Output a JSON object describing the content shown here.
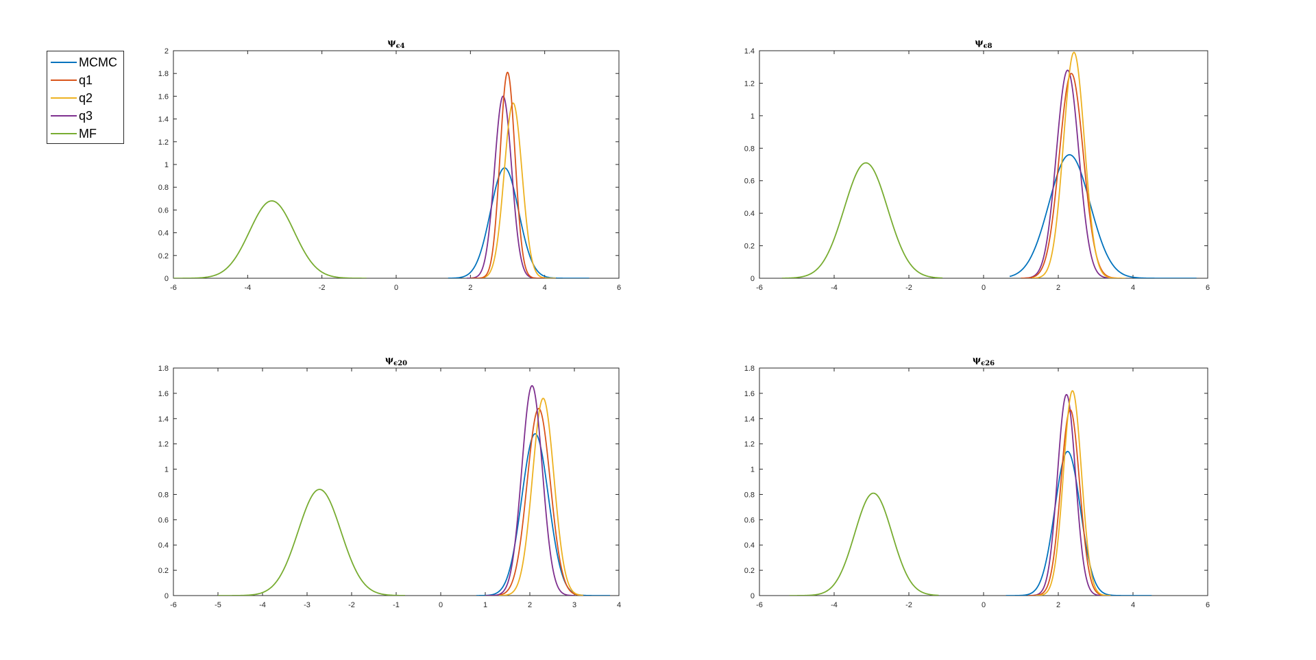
{
  "legend": [
    {
      "name": "MCMC",
      "color": "#0072BD"
    },
    {
      "name": "q1",
      "color": "#D95319"
    },
    {
      "name": "q2",
      "color": "#EDB120"
    },
    {
      "name": "q3",
      "color": "#7E2F8E"
    },
    {
      "name": "MF",
      "color": "#77AC30"
    }
  ],
  "chart_data": [
    {
      "type": "line",
      "title_main": "ψ",
      "title_sub": "ϵ4",
      "xlim": [
        -6,
        6
      ],
      "ylim": [
        0,
        2
      ],
      "xticks": [
        -6,
        -4,
        -2,
        0,
        2,
        4,
        6
      ],
      "yticks": [
        0,
        0.2,
        0.4,
        0.6,
        0.8,
        1,
        1.2,
        1.4,
        1.6,
        1.8,
        2
      ],
      "series": [
        {
          "name": "MF",
          "color": "#77AC30",
          "mode": "gauss",
          "center": -3.35,
          "sigma": 0.6,
          "peak": 0.68,
          "x0": -6.0,
          "x1": -0.8
        },
        {
          "name": "MCMC",
          "color": "#0072BD",
          "mode": "gauss",
          "center": 2.92,
          "sigma": 0.38,
          "peak": 0.97,
          "x0": 1.4,
          "x1": 5.2
        },
        {
          "name": "q3",
          "color": "#7E2F8E",
          "mode": "gauss",
          "center": 2.88,
          "sigma": 0.23,
          "peak": 1.6,
          "x0": 1.9,
          "x1": 4.0
        },
        {
          "name": "q2",
          "color": "#EDB120",
          "mode": "gauss",
          "center": 3.15,
          "sigma": 0.24,
          "peak": 1.54,
          "x0": 2.1,
          "x1": 4.3
        },
        {
          "name": "q1",
          "color": "#D95319",
          "mode": "gauss",
          "center": 3.0,
          "sigma": 0.2,
          "peak": 1.81,
          "x0": 2.0,
          "x1": 4.0
        }
      ]
    },
    {
      "type": "line",
      "title_main": "ψ",
      "title_sub": "ϵ8",
      "xlim": [
        -6,
        6
      ],
      "ylim": [
        0,
        1.4
      ],
      "xticks": [
        -6,
        -4,
        -2,
        0,
        2,
        4,
        6
      ],
      "yticks": [
        0,
        0.2,
        0.4,
        0.6,
        0.8,
        1,
        1.2,
        1.4
      ],
      "series": [
        {
          "name": "MF",
          "color": "#77AC30",
          "mode": "gauss",
          "center": -3.15,
          "sigma": 0.58,
          "peak": 0.71,
          "x0": -5.4,
          "x1": -1.1
        },
        {
          "name": "MCMC",
          "color": "#0072BD",
          "mode": "gauss",
          "center": 2.3,
          "sigma": 0.55,
          "peak": 0.76,
          "x0": 0.7,
          "x1": 5.7
        },
        {
          "name": "q3",
          "color": "#7E2F8E",
          "mode": "gauss",
          "center": 2.25,
          "sigma": 0.3,
          "peak": 1.28,
          "x0": 1.0,
          "x1": 3.6
        },
        {
          "name": "q1",
          "color": "#D95319",
          "mode": "gauss",
          "center": 2.35,
          "sigma": 0.32,
          "peak": 1.26,
          "x0": 1.0,
          "x1": 3.7
        },
        {
          "name": "q2",
          "color": "#EDB120",
          "mode": "gauss",
          "center": 2.42,
          "sigma": 0.28,
          "peak": 1.39,
          "x0": 1.3,
          "x1": 3.8
        }
      ]
    },
    {
      "type": "line",
      "title_main": "ψ",
      "title_sub": "ϵ20",
      "xlim": [
        -6,
        4
      ],
      "ylim": [
        0,
        1.8
      ],
      "xticks": [
        -6,
        -5,
        -4,
        -3,
        -2,
        -1,
        0,
        1,
        2,
        3,
        4
      ],
      "yticks": [
        0,
        0.2,
        0.4,
        0.6,
        0.8,
        1,
        1.2,
        1.4,
        1.6,
        1.8
      ],
      "series": [
        {
          "name": "MF",
          "color": "#77AC30",
          "mode": "gauss",
          "center": -2.72,
          "sigma": 0.48,
          "peak": 0.84,
          "x0": -5.0,
          "x1": -0.8
        },
        {
          "name": "MCMC",
          "color": "#0072BD",
          "mode": "gauss",
          "center": 2.12,
          "sigma": 0.3,
          "peak": 1.28,
          "x0": 0.8,
          "x1": 3.8
        },
        {
          "name": "q1",
          "color": "#D95319",
          "mode": "gauss",
          "center": 2.2,
          "sigma": 0.26,
          "peak": 1.48,
          "x0": 1.1,
          "x1": 3.1
        },
        {
          "name": "q2",
          "color": "#EDB120",
          "mode": "gauss",
          "center": 2.3,
          "sigma": 0.24,
          "peak": 1.56,
          "x0": 1.3,
          "x1": 3.2
        },
        {
          "name": "q3",
          "color": "#7E2F8E",
          "mode": "gauss",
          "center": 2.05,
          "sigma": 0.23,
          "peak": 1.66,
          "x0": 1.0,
          "x1": 3.0
        }
      ]
    },
    {
      "type": "line",
      "title_main": "ψ",
      "title_sub": "ϵ26",
      "xlim": [
        -6,
        6
      ],
      "ylim": [
        0,
        1.8
      ],
      "xticks": [
        -6,
        -4,
        -2,
        0,
        2,
        4,
        6
      ],
      "yticks": [
        0,
        0.2,
        0.4,
        0.6,
        0.8,
        1,
        1.2,
        1.4,
        1.6,
        1.8
      ],
      "series": [
        {
          "name": "MF",
          "color": "#77AC30",
          "mode": "gauss",
          "center": -2.95,
          "sigma": 0.5,
          "peak": 0.81,
          "x0": -5.2,
          "x1": -1.2
        },
        {
          "name": "MCMC",
          "color": "#0072BD",
          "mode": "gauss",
          "center": 2.25,
          "sigma": 0.34,
          "peak": 1.14,
          "x0": 0.6,
          "x1": 4.5
        },
        {
          "name": "q3",
          "color": "#7E2F8E",
          "mode": "gauss",
          "center": 2.22,
          "sigma": 0.24,
          "peak": 1.59,
          "x0": 1.2,
          "x1": 3.2
        },
        {
          "name": "q1",
          "color": "#D95319",
          "mode": "gauss",
          "center": 2.32,
          "sigma": 0.25,
          "peak": 1.47,
          "x0": 1.2,
          "x1": 3.3
        },
        {
          "name": "q2",
          "color": "#EDB120",
          "mode": "gauss",
          "center": 2.38,
          "sigma": 0.24,
          "peak": 1.62,
          "x0": 1.4,
          "x1": 3.4
        }
      ]
    }
  ]
}
